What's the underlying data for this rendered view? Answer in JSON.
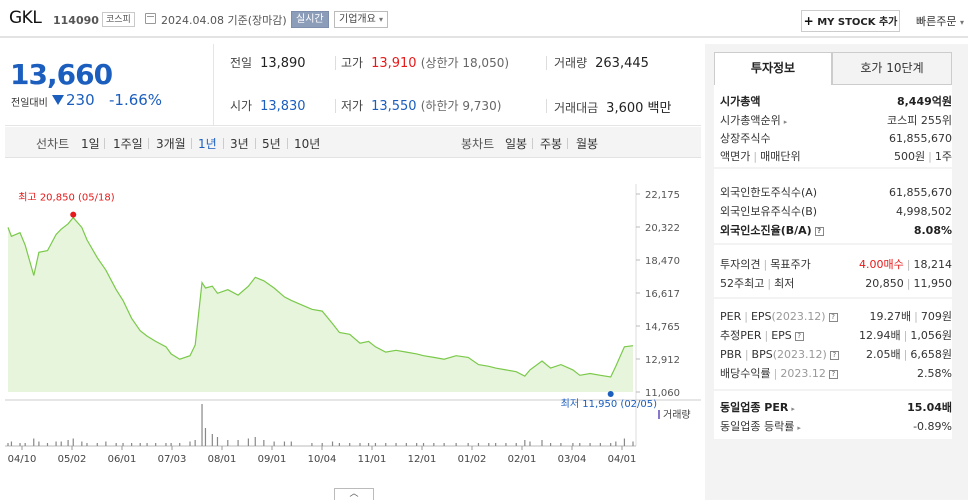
{
  "header": {
    "name": "GKL",
    "code": "114090",
    "market": "코스피",
    "date": "2024.04.08 기준(장마감)",
    "realtime": "실시간",
    "company": "기업개요",
    "my_stock": "MY STOCK 추가",
    "quick_order": "빠른주문"
  },
  "price": {
    "current": "13,660",
    "compare_label": "전일대비",
    "change": "230",
    "change_pct": "-1.66%",
    "prev_label": "전일",
    "prev": "13,890",
    "high_label": "고가",
    "high": "13,910",
    "upper_limit_label": "(상한가 18,050)",
    "volume_label": "거래량",
    "volume": "263,445",
    "open_label": "시가",
    "open": "13,830",
    "low_label": "저가",
    "low": "13,550",
    "lower_limit_label": "(하한가 9,730)",
    "amount_label": "거래대금",
    "amount": "3,600 백만"
  },
  "periods": {
    "line_label": "선차트",
    "line": [
      "1일",
      "1주일",
      "3개월",
      "1년",
      "3년",
      "5년",
      "10년"
    ],
    "selected": "1년",
    "candle_label": "봉차트",
    "candle": [
      "일봉",
      "주봉",
      "월봉"
    ]
  },
  "chart_data": {
    "type": "area",
    "x": [
      "2023-04-10",
      "2023-04-12",
      "2023-04-17",
      "2023-04-20",
      "2023-04-25",
      "2023-04-28",
      "2023-05-03",
      "2023-05-08",
      "2023-05-11",
      "2023-05-15",
      "2023-05-18",
      "2023-05-23",
      "2023-05-26",
      "2023-06-01",
      "2023-06-06",
      "2023-06-12",
      "2023-06-16",
      "2023-06-21",
      "2023-06-26",
      "2023-06-30",
      "2023-07-05",
      "2023-07-11",
      "2023-07-14",
      "2023-07-19",
      "2023-07-25",
      "2023-07-28",
      "2023-08-01",
      "2023-08-03",
      "2023-08-07",
      "2023-08-10",
      "2023-08-16",
      "2023-08-22",
      "2023-08-28",
      "2023-09-01",
      "2023-09-06",
      "2023-09-12",
      "2023-09-18",
      "2023-09-22",
      "2023-10-04",
      "2023-10-10",
      "2023-10-16",
      "2023-10-20",
      "2023-10-26",
      "2023-11-01",
      "2023-11-06",
      "2023-11-10",
      "2023-11-16",
      "2023-11-22",
      "2023-11-28",
      "2023-12-04",
      "2023-12-08",
      "2023-12-14",
      "2023-12-20",
      "2023-12-27",
      "2024-01-03",
      "2024-01-09",
      "2024-01-15",
      "2024-01-19",
      "2024-01-25",
      "2024-01-31",
      "2024-02-05",
      "2024-02-08",
      "2024-02-15",
      "2024-02-20",
      "2024-02-26",
      "2024-03-04",
      "2024-03-08",
      "2024-03-14",
      "2024-03-20",
      "2024-03-26",
      "2024-03-29",
      "2024-04-03",
      "2024-04-08"
    ],
    "values": [
      20300,
      19800,
      20000,
      19300,
      17600,
      18900,
      19000,
      19900,
      20200,
      20500,
      20850,
      20300,
      19600,
      18600,
      17900,
      16800,
      16200,
      15200,
      14500,
      14200,
      13900,
      13600,
      13200,
      12900,
      13100,
      13700,
      17200,
      16900,
      17000,
      16600,
      16800,
      16500,
      17000,
      17500,
      17300,
      16900,
      16400,
      16200,
      15700,
      15600,
      14900,
      14400,
      14300,
      13800,
      13900,
      13600,
      13300,
      13400,
      13300,
      13200,
      13100,
      13000,
      12900,
      13100,
      13000,
      12600,
      12500,
      12400,
      12300,
      12200,
      11950,
      12300,
      12800,
      12400,
      12600,
      12300,
      12000,
      12100,
      12000,
      11900,
      12500,
      13600,
      13660
    ],
    "volume": [
      2,
      3,
      2,
      2,
      5,
      3,
      2,
      3,
      3,
      4,
      5,
      3,
      2,
      2,
      3,
      2,
      2,
      2,
      2,
      2,
      2,
      2,
      2,
      2,
      3,
      4,
      28,
      12,
      8,
      6,
      4,
      4,
      5,
      6,
      4,
      3,
      3,
      3,
      2,
      2,
      3,
      2,
      2,
      2,
      2,
      2,
      2,
      2,
      2,
      2,
      2,
      2,
      2,
      2,
      2,
      2,
      2,
      2,
      2,
      2,
      4,
      3,
      4,
      2,
      2,
      2,
      2,
      2,
      2,
      2,
      3,
      5,
      3
    ],
    "y_ticks": [
      "22,175",
      "20,322",
      "18,470",
      "16,617",
      "14,765",
      "12,912",
      "11,060"
    ],
    "ylim": [
      11060,
      22175
    ],
    "x_tick_labels": [
      "04/10",
      "05/02",
      "06/01",
      "07/03",
      "08/01",
      "09/01",
      "10/04",
      "11/01",
      "12/01",
      "01/02",
      "02/01",
      "03/04",
      "04/01"
    ],
    "high_label": "최고 20,850 (05/18)",
    "low_label": "최저 11,950 (02/05)",
    "volume_label": "거래량",
    "line_color": "#7ac94a",
    "fill_color": "#e6f5dc"
  },
  "side": {
    "tab_on": "투자정보",
    "tab_off": "호가 10단계",
    "market_cap_label": "시가총액",
    "market_cap": "8,449억원",
    "rank_label": "시가총액순위",
    "rank": "코스피 255위",
    "shares_label": "상장주식수",
    "shares": "61,855,670",
    "par_label": "액면가",
    "unit_label": "매매단위",
    "par": "500원",
    "unit": "1주",
    "foreign_limit_label": "외국인한도주식수(A)",
    "foreign_limit": "61,855,670",
    "foreign_hold_label": "외국인보유주식수(B)",
    "foreign_hold": "4,998,502",
    "foreign_rate_label": "외국인소진율(B/A)",
    "foreign_rate": "8.08%",
    "opinion_label": "투자의견",
    "target_label": "목표주가",
    "opinion": "4.00매수",
    "target": "18,214",
    "w52_label": "52주최고",
    "w52_low_label": "최저",
    "w52_high": "20,850",
    "w52_low": "11,950",
    "per_label": "PER",
    "eps_label": "EPS",
    "eps_year": "(2023.12)",
    "per": "19.27배",
    "eps": "709원",
    "est_per_label": "추정PER",
    "est_eps_label": "EPS",
    "est_per": "12.94배",
    "est_eps": "1,056원",
    "pbr_label": "PBR",
    "bps_label": "BPS",
    "bps_year": "(2023.12)",
    "pbr": "2.05배",
    "bps": "6,658원",
    "div_label": "배당수익률",
    "div_year": "2023.12",
    "div": "2.58%",
    "ind_per_label": "동일업종 PER",
    "ind_per": "15.04배",
    "ind_rate_label": "동일업종 등락률",
    "ind_rate": "-0.89%"
  }
}
